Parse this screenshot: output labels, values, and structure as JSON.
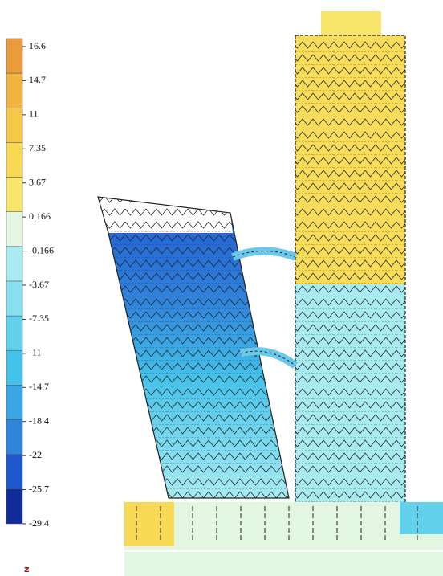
{
  "legend": {
    "labels": [
      16.6,
      14.7,
      11,
      7.35,
      3.67,
      0.166,
      -0.166,
      -3.67,
      -7.35,
      -11,
      -14.7,
      -18.4,
      -22,
      -25.7,
      -29.4
    ],
    "colors": [
      "#eb9a3c",
      "#f2b440",
      "#f5c84a",
      "#f7d956",
      "#f8e66c",
      "#e2f6e2",
      "#a8ecf2",
      "#86e0ef",
      "#62d2ec",
      "#44c2ea",
      "#3aa6e4",
      "#2f84dc",
      "#1f58cc",
      "#0f2c9a"
    ]
  },
  "axis_label": "z"
}
